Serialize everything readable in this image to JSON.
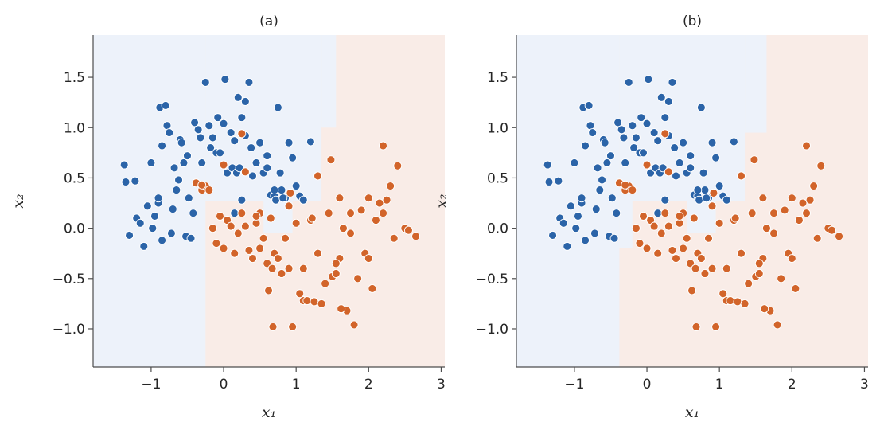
{
  "colors": {
    "class0": "#2b64a8",
    "class1": "#d2642a",
    "region0": "#edf2fa",
    "region1": "#f9ece7"
  },
  "chart_data": [
    {
      "type": "scatter",
      "title": "(a)",
      "xlabel": "x₁",
      "ylabel": "x₂",
      "xlim": [
        -1.8,
        3.05
      ],
      "ylim": [
        -1.38,
        1.92
      ],
      "xticks": [
        -1,
        0,
        1,
        2,
        3
      ],
      "xtick_labels": [
        "−1",
        "0",
        "1",
        "2",
        "3"
      ],
      "yticks": [
        -1.0,
        -0.5,
        0.0,
        0.5,
        1.0,
        1.5
      ],
      "ytick_labels": [
        "−1.0",
        "−0.5",
        "0.0",
        "0.5",
        "1.0",
        "1.5"
      ],
      "grid": false,
      "decision_regions": {
        "background_class": 1,
        "class0_rects": [
          {
            "x": [
              -1.8,
              -0.25
            ],
            "y": [
              -1.38,
              1.92
            ]
          },
          {
            "x": [
              -0.25,
              1.35
            ],
            "y": [
              0.27,
              1.92
            ]
          },
          {
            "x": [
              1.35,
              1.55
            ],
            "y": [
              1.0,
              1.92
            ]
          },
          {
            "x": [
              0.55,
              0.95
            ],
            "y": [
              -0.05,
              0.3
            ]
          }
        ]
      },
      "series": [
        {
          "class": 0,
          "x": [
            -1.37,
            -1.35,
            -1.22,
            -1.2,
            -1.15,
            -1.1,
            -1.05,
            -1.0,
            -0.98,
            -0.95,
            -0.9,
            -0.88,
            -0.85,
            -0.8,
            -0.78,
            -0.75,
            -0.72,
            -0.7,
            -0.68,
            -0.65,
            -0.62,
            -0.6,
            -0.58,
            -0.55,
            -0.52,
            -0.5,
            -0.48,
            -0.45,
            -0.42,
            -0.4,
            -0.35,
            -0.32,
            -0.3,
            -0.25,
            -0.2,
            -0.18,
            -0.15,
            -0.1,
            -0.08,
            -0.05,
            0.0,
            0.02,
            0.05,
            0.1,
            0.12,
            0.15,
            0.18,
            0.2,
            0.22,
            0.25,
            0.3,
            0.35,
            0.38,
            0.4,
            0.45,
            0.5,
            0.55,
            0.6,
            0.65,
            0.7,
            0.72,
            0.75,
            0.8,
            0.85,
            0.9,
            0.95,
            1.0,
            1.05,
            1.1,
            1.2,
            -1.3,
            -0.9,
            -0.85,
            0.3,
            0.6,
            0.7,
            0.78,
            0.82,
            0.25,
            0.15
          ],
          "y": [
            0.63,
            0.46,
            0.47,
            0.1,
            0.05,
            -0.18,
            0.22,
            0.65,
            0.0,
            0.12,
            0.25,
            1.2,
            0.82,
            1.22,
            1.02,
            0.95,
            -0.05,
            0.19,
            0.6,
            0.38,
            0.48,
            0.88,
            0.85,
            0.65,
            -0.08,
            0.72,
            0.3,
            -0.1,
            0.15,
            1.05,
            0.98,
            0.9,
            0.65,
            1.45,
            1.02,
            0.8,
            0.9,
            0.75,
            1.1,
            0.75,
            1.04,
            1.48,
            0.55,
            0.95,
            0.6,
            0.87,
            0.55,
            1.3,
            0.6,
            0.28,
            0.92,
            1.45,
            0.8,
            0.52,
            0.65,
            0.85,
            0.55,
            0.6,
            0.33,
            0.32,
            0.28,
            1.2,
            0.38,
            0.3,
            0.85,
            0.7,
            0.42,
            0.32,
            0.28,
            0.86,
            -0.07,
            0.3,
            -0.12,
            1.26,
            0.72,
            0.38,
            0.55,
            0.3,
            1.1,
            0.15
          ]
        },
        {
          "class": 1,
          "x": [
            -0.38,
            -0.3,
            -0.25,
            -0.2,
            -0.15,
            -0.1,
            -0.05,
            0.0,
            0.05,
            0.1,
            0.15,
            0.2,
            0.25,
            0.3,
            0.35,
            0.4,
            0.45,
            0.5,
            0.55,
            0.6,
            0.62,
            0.65,
            0.68,
            0.7,
            0.75,
            0.8,
            0.85,
            0.9,
            0.95,
            1.0,
            1.05,
            1.1,
            1.15,
            1.2,
            1.25,
            1.3,
            1.35,
            1.4,
            1.45,
            1.5,
            1.55,
            1.6,
            1.65,
            1.7,
            1.75,
            1.8,
            1.85,
            1.9,
            1.95,
            2.0,
            2.05,
            2.1,
            2.15,
            2.2,
            2.25,
            2.3,
            2.35,
            2.4,
            2.5,
            2.55,
            2.65,
            2.2,
            1.48,
            1.3,
            1.22,
            0.9,
            0.67,
            0.92,
            1.75,
            2.0,
            1.6,
            -0.3,
            0.0,
            0.25,
            0.3,
            0.45,
            1.1,
            1.55,
            1.62,
            0.5
          ],
          "y": [
            0.45,
            0.38,
            0.42,
            0.38,
            0.0,
            -0.15,
            0.12,
            -0.2,
            0.08,
            0.02,
            -0.25,
            -0.05,
            0.15,
            0.02,
            -0.22,
            -0.3,
            0.05,
            0.15,
            -0.1,
            -0.35,
            -0.62,
            0.1,
            -0.98,
            -0.25,
            -0.3,
            -0.45,
            -0.1,
            -0.4,
            -0.98,
            0.05,
            -0.65,
            -0.72,
            -0.72,
            0.08,
            -0.73,
            -0.25,
            -0.75,
            -0.55,
            0.15,
            -0.48,
            -0.45,
            -0.3,
            0.0,
            -0.82,
            -0.05,
            -0.96,
            -0.5,
            0.18,
            -0.25,
            0.3,
            -0.6,
            0.08,
            0.25,
            0.82,
            0.28,
            0.42,
            -0.1,
            0.62,
            0.0,
            -0.02,
            -0.08,
            0.15,
            0.68,
            0.52,
            0.1,
            0.22,
            -0.4,
            0.35,
            0.15,
            -0.3,
            0.3,
            0.43,
            0.63,
            0.94,
            0.56,
            0.12,
            -0.4,
            -0.35,
            -0.8,
            -0.2
          ]
        }
      ]
    },
    {
      "type": "scatter",
      "title": "(b)",
      "xlabel": "x₁",
      "ylabel": "x₂",
      "xlim": [
        -1.8,
        3.05
      ],
      "ylim": [
        -1.38,
        1.92
      ],
      "xticks": [
        -1,
        0,
        1,
        2,
        3
      ],
      "xtick_labels": [
        "−1",
        "0",
        "1",
        "2",
        "3"
      ],
      "yticks": [
        -1.0,
        -0.5,
        0.0,
        0.5,
        1.0,
        1.5
      ],
      "ytick_labels": [
        "−1.0",
        "−0.5",
        "0.0",
        "0.5",
        "1.0",
        "1.5"
      ],
      "grid": false,
      "decision_regions": {
        "background_class": 1,
        "class0_rects": [
          {
            "x": [
              -1.8,
              -0.38
            ],
            "y": [
              -1.38,
              1.92
            ]
          },
          {
            "x": [
              -0.38,
              1.35
            ],
            "y": [
              0.27,
              1.92
            ]
          },
          {
            "x": [
              1.35,
              1.65
            ],
            "y": [
              0.95,
              1.92
            ]
          },
          {
            "x": [
              0.55,
              0.95
            ],
            "y": [
              -0.05,
              0.3
            ]
          },
          {
            "x": [
              -0.38,
              -0.2
            ],
            "y": [
              -0.2,
              0.27
            ]
          }
        ]
      },
      "series": [
        {
          "class": 0,
          "x": [
            -1.37,
            -1.35,
            -1.22,
            -1.2,
            -1.15,
            -1.1,
            -1.05,
            -1.0,
            -0.98,
            -0.95,
            -0.9,
            -0.88,
            -0.85,
            -0.8,
            -0.78,
            -0.75,
            -0.72,
            -0.7,
            -0.68,
            -0.65,
            -0.62,
            -0.6,
            -0.58,
            -0.55,
            -0.52,
            -0.5,
            -0.48,
            -0.45,
            -0.42,
            -0.4,
            -0.35,
            -0.32,
            -0.3,
            -0.25,
            -0.2,
            -0.18,
            -0.15,
            -0.1,
            -0.08,
            -0.05,
            0.0,
            0.02,
            0.05,
            0.1,
            0.12,
            0.15,
            0.18,
            0.2,
            0.22,
            0.25,
            0.3,
            0.35,
            0.38,
            0.4,
            0.45,
            0.5,
            0.55,
            0.6,
            0.65,
            0.7,
            0.72,
            0.75,
            0.8,
            0.85,
            0.9,
            0.95,
            1.0,
            1.05,
            1.1,
            1.2,
            -1.3,
            -0.9,
            -0.85,
            0.3,
            0.6,
            0.7,
            0.78,
            0.82,
            0.25,
            0.15
          ],
          "y": [
            0.63,
            0.46,
            0.47,
            0.1,
            0.05,
            -0.18,
            0.22,
            0.65,
            0.0,
            0.12,
            0.25,
            1.2,
            0.82,
            1.22,
            1.02,
            0.95,
            -0.05,
            0.19,
            0.6,
            0.38,
            0.48,
            0.88,
            0.85,
            0.65,
            -0.08,
            0.72,
            0.3,
            -0.1,
            0.15,
            1.05,
            0.98,
            0.9,
            0.65,
            1.45,
            1.02,
            0.8,
            0.9,
            0.75,
            1.1,
            0.75,
            1.04,
            1.48,
            0.55,
            0.95,
            0.6,
            0.87,
            0.55,
            1.3,
            0.6,
            0.28,
            0.92,
            1.45,
            0.8,
            0.52,
            0.65,
            0.85,
            0.55,
            0.6,
            0.33,
            0.32,
            0.28,
            1.2,
            0.38,
            0.3,
            0.85,
            0.7,
            0.42,
            0.32,
            0.28,
            0.86,
            -0.07,
            0.3,
            -0.12,
            1.26,
            0.72,
            0.38,
            0.55,
            0.3,
            1.1,
            0.15
          ]
        },
        {
          "class": 1,
          "x": [
            -0.38,
            -0.3,
            -0.25,
            -0.2,
            -0.15,
            -0.1,
            -0.05,
            0.0,
            0.05,
            0.1,
            0.15,
            0.2,
            0.25,
            0.3,
            0.35,
            0.4,
            0.45,
            0.5,
            0.55,
            0.6,
            0.62,
            0.65,
            0.68,
            0.7,
            0.75,
            0.8,
            0.85,
            0.9,
            0.95,
            1.0,
            1.05,
            1.1,
            1.15,
            1.2,
            1.25,
            1.3,
            1.35,
            1.4,
            1.45,
            1.5,
            1.55,
            1.6,
            1.65,
            1.7,
            1.75,
            1.8,
            1.85,
            1.9,
            1.95,
            2.0,
            2.05,
            2.1,
            2.15,
            2.2,
            2.25,
            2.3,
            2.35,
            2.4,
            2.5,
            2.55,
            2.65,
            2.2,
            1.48,
            1.3,
            1.22,
            0.9,
            0.67,
            0.92,
            1.75,
            2.0,
            1.6,
            -0.3,
            0.0,
            0.25,
            0.3,
            0.45,
            1.1,
            1.55,
            1.62,
            0.5
          ],
          "y": [
            0.45,
            0.38,
            0.42,
            0.38,
            0.0,
            -0.15,
            0.12,
            -0.2,
            0.08,
            0.02,
            -0.25,
            -0.05,
            0.15,
            0.02,
            -0.22,
            -0.3,
            0.05,
            0.15,
            -0.1,
            -0.35,
            -0.62,
            0.1,
            -0.98,
            -0.25,
            -0.3,
            -0.45,
            -0.1,
            -0.4,
            -0.98,
            0.05,
            -0.65,
            -0.72,
            -0.72,
            0.08,
            -0.73,
            -0.25,
            -0.75,
            -0.55,
            0.15,
            -0.48,
            -0.45,
            -0.3,
            0.0,
            -0.82,
            -0.05,
            -0.96,
            -0.5,
            0.18,
            -0.25,
            0.3,
            -0.6,
            0.08,
            0.25,
            0.82,
            0.28,
            0.42,
            -0.1,
            0.62,
            0.0,
            -0.02,
            -0.08,
            0.15,
            0.68,
            0.52,
            0.1,
            0.22,
            -0.4,
            0.35,
            0.15,
            -0.3,
            0.3,
            0.43,
            0.63,
            0.94,
            0.56,
            0.12,
            -0.4,
            -0.35,
            -0.8,
            -0.2
          ]
        }
      ]
    }
  ]
}
